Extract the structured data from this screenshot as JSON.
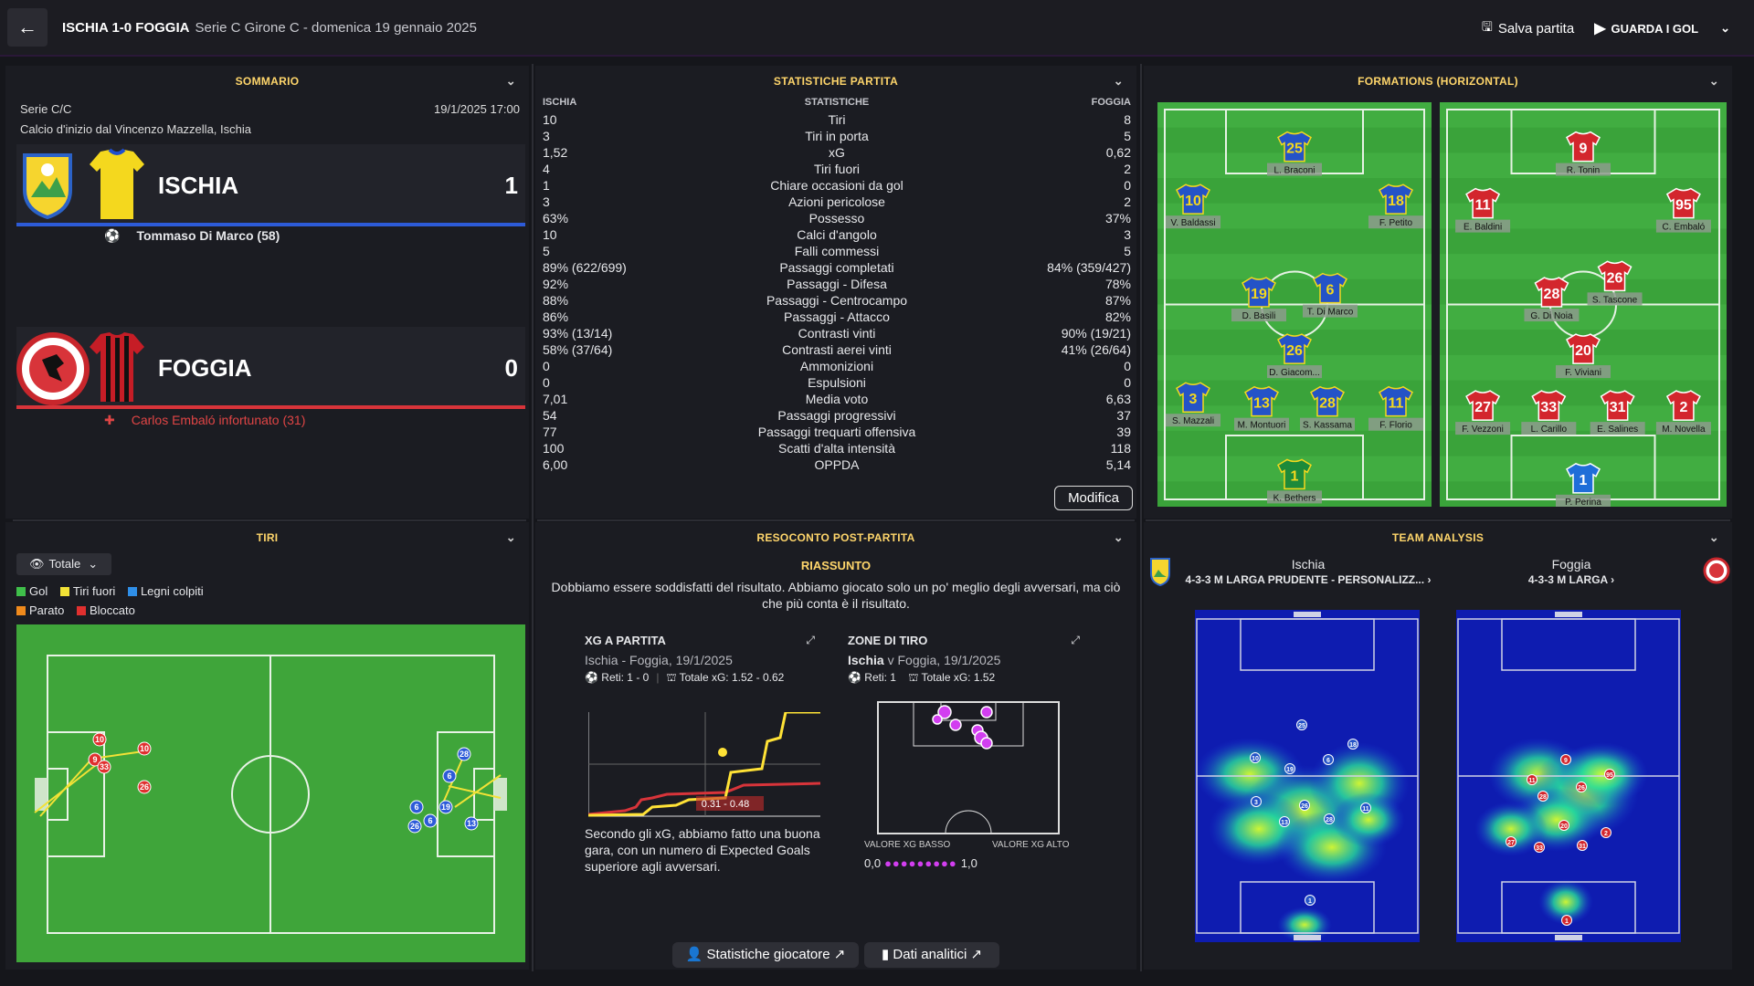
{
  "header": {
    "back_icon": "arrow-left-icon",
    "title": "ISCHIA 1-0 FOGGIA",
    "subtitle": "Serie C Girone C - domenica 19 gennaio 2025",
    "save_label": "Salva partita",
    "watch_label": "GUARDA I GOL"
  },
  "summary": {
    "title": "SOMMARIO",
    "competition": "Serie C/C",
    "datetime": "19/1/2025 17:00",
    "kickoff": "Calcio d'inizio dal Vincenzo Mazzella, Ischia",
    "home": {
      "name": "ISCHIA",
      "score": "1",
      "color": "#2d5bd8",
      "event": "Tommaso Di Marco (58)"
    },
    "away": {
      "name": "FOGGIA",
      "score": "0",
      "color": "#d8343a",
      "event": "Carlos Embaló infortunato (31)"
    }
  },
  "stats": {
    "title": "STATISTICHE PARTITA",
    "col_home": "ISCHIA",
    "col_mid": "STATISTICHE",
    "col_away": "FOGGIA",
    "rows": [
      [
        "10",
        "Tiri",
        "8"
      ],
      [
        "3",
        "Tiri in porta",
        "5"
      ],
      [
        "1,52",
        "xG",
        "0,62"
      ],
      [
        "4",
        "Tiri fuori",
        "2"
      ],
      [
        "1",
        "Chiare occasioni da gol",
        "0"
      ],
      [
        "3",
        "Azioni pericolose",
        "2"
      ],
      [
        "63%",
        "Possesso",
        "37%"
      ],
      [
        "10",
        "Calci d'angolo",
        "3"
      ],
      [
        "5",
        "Falli commessi",
        "5"
      ],
      [
        "89% (622/699)",
        "Passaggi completati",
        "84% (359/427)"
      ],
      [
        "92%",
        "Passaggi - Difesa",
        "78%"
      ],
      [
        "88%",
        "Passaggi - Centrocampo",
        "87%"
      ],
      [
        "86%",
        "Passaggi - Attacco",
        "82%"
      ],
      [
        "93% (13/14)",
        "Contrasti vinti",
        "90% (19/21)"
      ],
      [
        "58% (37/64)",
        "Contrasti aerei vinti",
        "41% (26/64)"
      ],
      [
        "0",
        "Ammonizioni",
        "0"
      ],
      [
        "0",
        "Espulsioni",
        "0"
      ],
      [
        "7,01",
        "Media voto",
        "6,63"
      ],
      [
        "54",
        "Passaggi progressivi",
        "37"
      ],
      [
        "77",
        "Passaggi trequarti offensiva",
        "39"
      ],
      [
        "100",
        "Scatti d'alta intensità",
        "118"
      ],
      [
        "6,00",
        "OPPDA",
        "5,14"
      ]
    ],
    "edit_label": "Modifica"
  },
  "formations": {
    "title": "FORMATIONS (HORIZONTAL)",
    "home_players": [
      {
        "num": "25",
        "name": "L. Braconi"
      },
      {
        "num": "10",
        "name": "V. Baldassi"
      },
      {
        "num": "18",
        "name": "F. Petito"
      },
      {
        "num": "19",
        "name": "D. Basili"
      },
      {
        "num": "6",
        "name": "T. Di Marco"
      },
      {
        "num": "26",
        "name": "D. Giacom..."
      },
      {
        "num": "3",
        "name": "S. Mazzali"
      },
      {
        "num": "13",
        "name": "M. Montuori"
      },
      {
        "num": "28",
        "name": "S. Kassama"
      },
      {
        "num": "11",
        "name": "F. Florio"
      },
      {
        "num": "1",
        "name": "K. Bethers"
      }
    ],
    "away_players": [
      {
        "num": "9",
        "name": "R. Tonin"
      },
      {
        "num": "11",
        "name": "E. Baldini"
      },
      {
        "num": "95",
        "name": "C. Embaló"
      },
      {
        "num": "28",
        "name": "G. Di Noia"
      },
      {
        "num": "26",
        "name": "S. Tascone"
      },
      {
        "num": "20",
        "name": "F. Viviani"
      },
      {
        "num": "27",
        "name": "F. Vezzoni"
      },
      {
        "num": "33",
        "name": "L. Carillo"
      },
      {
        "num": "31",
        "name": "E. Salines"
      },
      {
        "num": "2",
        "name": "M. Novella"
      },
      {
        "num": "1",
        "name": "P. Perina"
      }
    ]
  },
  "shots": {
    "title": "TIRI",
    "filter": "Totale",
    "legend": [
      {
        "label": "Gol",
        "color": "#3fbf4a"
      },
      {
        "label": "Tiri fuori",
        "color": "#f2e236"
      },
      {
        "label": "Legni colpiti",
        "color": "#2f8fe8"
      },
      {
        "label": "Parato",
        "color": "#f08a1c"
      },
      {
        "label": "Bloccato",
        "color": "#e0302f"
      }
    ]
  },
  "report": {
    "title": "RESOCONTO POST-PARTITA",
    "summary_title": "RIASSUNTO",
    "summary_text": "Dobbiamo essere soddisfatti del risultato. Abbiamo giocato solo un po' meglio degli avversari, ma ciò che più conta è il risultato.",
    "xg": {
      "title": "XG A PARTITA",
      "match": "Ischia - Foggia, 19/1/2025",
      "goals": "Reti: 1 - 0",
      "total_xg": "Totale xG: 1.52 - 0.62",
      "overlay": "0.31 - 0.48",
      "text": "Secondo gli xG, abbiamo fatto una buona gara, con un numero di Expected Goals superiore agli avversari."
    },
    "zones": {
      "title": "ZONE DI TIRO",
      "team": "Ischia",
      "match": "v Foggia, 19/1/2025",
      "goals": "Reti: 1",
      "total_xg": "Totale xG: 1.52",
      "low_label": "VALORE XG BASSO",
      "high_label": "VALORE XG ALTO",
      "min": "0,0",
      "max": "1,0"
    },
    "player_stats_label": "Statistiche giocatore",
    "analytics_label": "Dati analitici"
  },
  "analysis": {
    "title": "TEAM ANALYSIS",
    "home_name": "Ischia",
    "home_tactic": "4-3-3 M LARGA PRUDENTE - PERSONALIZZ...",
    "away_name": "Foggia",
    "away_tactic": "4-3-3 M LARGA"
  }
}
